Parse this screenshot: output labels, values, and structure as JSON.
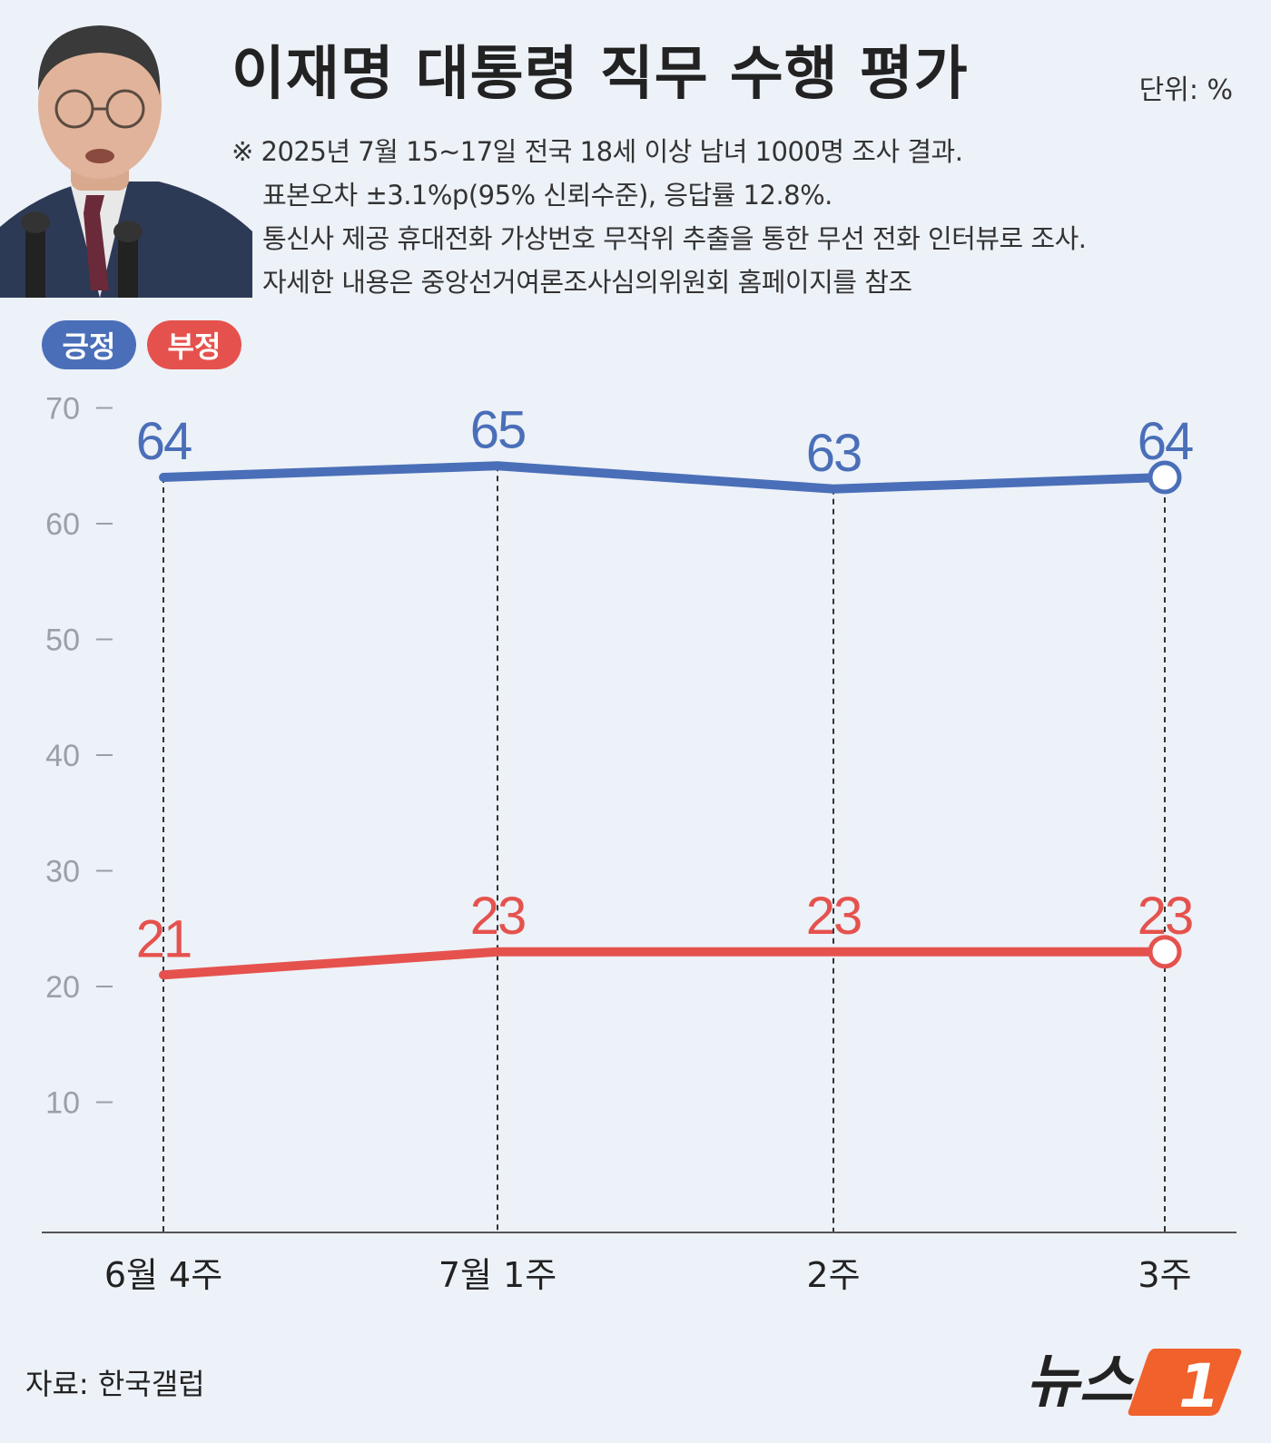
{
  "header": {
    "title": "이재명 대통령 직무 수행 평가",
    "unit": "단위: %",
    "notes": [
      "※ 2025년 7월 15~17일 전국 18세 이상 남녀 1000명 조사 결과.",
      "표본오차 ±3.1%p(95% 신뢰수준), 응답률 12.8%.",
      "통신사 제공 휴대전화 가상번호 무작위 추출을 통한 무선 전화 인터뷰로 조사.",
      "자세한 내용은 중앙선거여론조사심의위원회 홈페이지를 참조"
    ]
  },
  "legend": {
    "positive": "긍정",
    "negative": "부정"
  },
  "colors": {
    "positive": "#4a6fb8",
    "negative": "#e5524d",
    "background": "#edf1f8",
    "logo_orange": "#f0612c"
  },
  "chart_data": {
    "type": "line",
    "categories": [
      "6월 4주",
      "7월 1주",
      "2주",
      "3주"
    ],
    "series": [
      {
        "name": "긍정",
        "values": [
          64,
          65,
          63,
          64
        ]
      },
      {
        "name": "부정",
        "values": [
          21,
          23,
          23,
          23
        ]
      }
    ],
    "yticks": [
      10,
      20,
      30,
      40,
      50,
      60,
      70
    ],
    "ylim": [
      0,
      70
    ],
    "grid": false,
    "legend": "top-left"
  },
  "footer": {
    "source": "자료: 한국갤럽",
    "logo_text": "뉴스",
    "logo_number": "1"
  }
}
